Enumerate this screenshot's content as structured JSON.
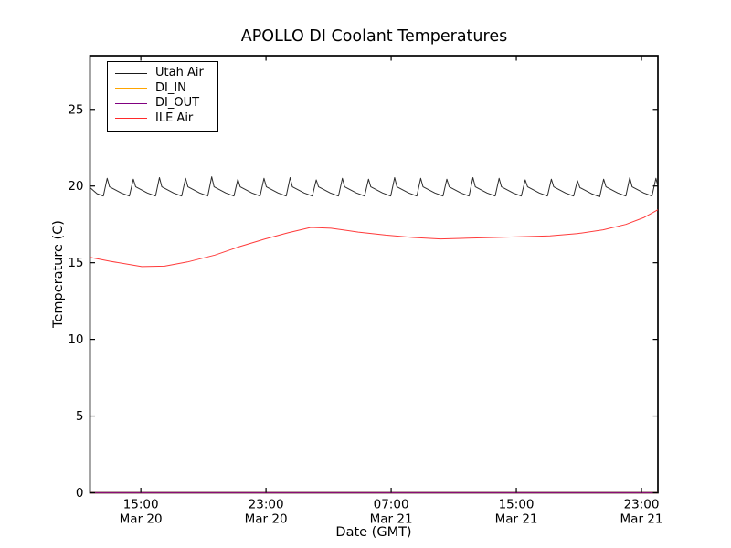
{
  "chart_data": {
    "type": "line",
    "title": "APOLLO DI Coolant Temperatures",
    "xlabel": "Date (GMT)",
    "ylabel": "Temperature (C)",
    "grid": false,
    "legend_position": "upper left",
    "x_unit_hours_since": "Mar 20 ~11:45 GMT",
    "xlim": [
      0,
      36.3
    ],
    "ylim": [
      0,
      28.5
    ],
    "y_ticks": [
      0,
      5,
      10,
      15,
      20,
      25
    ],
    "x_ticks": [
      {
        "t": 3.25,
        "time": "15:00",
        "date": "Mar 20"
      },
      {
        "t": 11.25,
        "time": "23:00",
        "date": "Mar 20"
      },
      {
        "t": 19.25,
        "time": "07:00",
        "date": "Mar 21"
      },
      {
        "t": 27.25,
        "time": "15:00",
        "date": "Mar 21"
      },
      {
        "t": 35.25,
        "time": "23:00",
        "date": "Mar 21"
      }
    ],
    "series": [
      {
        "name": "Utah Air",
        "color": "#1a1a1a",
        "width": 1,
        "points": [
          [
            0,
            19.9
          ],
          [
            0.45,
            19.5
          ],
          [
            0.85,
            19.35
          ],
          [
            1.1,
            20.5
          ],
          [
            1.25,
            19.95
          ],
          [
            2.0,
            19.55
          ],
          [
            2.52,
            19.35
          ],
          [
            2.77,
            20.45
          ],
          [
            2.92,
            19.95
          ],
          [
            3.67,
            19.55
          ],
          [
            4.19,
            19.35
          ],
          [
            4.44,
            20.55
          ],
          [
            4.59,
            19.95
          ],
          [
            5.34,
            19.55
          ],
          [
            5.86,
            19.35
          ],
          [
            6.11,
            20.5
          ],
          [
            6.26,
            19.95
          ],
          [
            7.01,
            19.55
          ],
          [
            7.53,
            19.35
          ],
          [
            7.78,
            20.6
          ],
          [
            7.93,
            19.95
          ],
          [
            8.68,
            19.55
          ],
          [
            9.2,
            19.35
          ],
          [
            9.45,
            20.45
          ],
          [
            9.6,
            19.95
          ],
          [
            10.35,
            19.55
          ],
          [
            10.87,
            19.35
          ],
          [
            11.12,
            20.5
          ],
          [
            11.27,
            19.95
          ],
          [
            12.02,
            19.55
          ],
          [
            12.54,
            19.35
          ],
          [
            12.79,
            20.55
          ],
          [
            12.94,
            19.95
          ],
          [
            13.69,
            19.55
          ],
          [
            14.21,
            19.35
          ],
          [
            14.46,
            20.4
          ],
          [
            14.61,
            19.95
          ],
          [
            15.36,
            19.55
          ],
          [
            15.88,
            19.35
          ],
          [
            16.13,
            20.5
          ],
          [
            16.28,
            19.95
          ],
          [
            17.03,
            19.55
          ],
          [
            17.55,
            19.35
          ],
          [
            17.8,
            20.45
          ],
          [
            17.95,
            19.95
          ],
          [
            18.7,
            19.55
          ],
          [
            19.22,
            19.35
          ],
          [
            19.47,
            20.55
          ],
          [
            19.62,
            19.95
          ],
          [
            20.37,
            19.55
          ],
          [
            20.89,
            19.35
          ],
          [
            21.14,
            20.5
          ],
          [
            21.29,
            19.95
          ],
          [
            22.04,
            19.55
          ],
          [
            22.56,
            19.35
          ],
          [
            22.81,
            20.45
          ],
          [
            22.96,
            19.95
          ],
          [
            23.71,
            19.55
          ],
          [
            24.23,
            19.35
          ],
          [
            24.48,
            20.55
          ],
          [
            24.63,
            19.95
          ],
          [
            25.38,
            19.55
          ],
          [
            25.9,
            19.35
          ],
          [
            26.15,
            20.5
          ],
          [
            26.3,
            19.95
          ],
          [
            27.05,
            19.55
          ],
          [
            27.57,
            19.35
          ],
          [
            27.82,
            20.4
          ],
          [
            27.97,
            19.95
          ],
          [
            28.72,
            19.55
          ],
          [
            29.24,
            19.35
          ],
          [
            29.49,
            20.45
          ],
          [
            29.64,
            19.95
          ],
          [
            30.39,
            19.55
          ],
          [
            30.91,
            19.35
          ],
          [
            31.16,
            20.35
          ],
          [
            31.31,
            19.9
          ],
          [
            32.06,
            19.5
          ],
          [
            32.58,
            19.3
          ],
          [
            32.83,
            20.45
          ],
          [
            32.98,
            19.95
          ],
          [
            33.73,
            19.55
          ],
          [
            34.25,
            19.35
          ],
          [
            34.5,
            20.55
          ],
          [
            34.65,
            19.95
          ],
          [
            35.4,
            19.55
          ],
          [
            35.92,
            19.35
          ],
          [
            36.17,
            20.5
          ],
          [
            36.3,
            20.0
          ]
        ]
      },
      {
        "name": "DI_IN",
        "color": "#ffa500",
        "width": 1.2,
        "points": [
          [
            0,
            0
          ],
          [
            36.3,
            0
          ]
        ]
      },
      {
        "name": "DI_OUT",
        "color": "#800080",
        "width": 1.2,
        "points": [
          [
            0,
            0
          ],
          [
            36.3,
            0
          ]
        ]
      },
      {
        "name": "ILE Air",
        "color": "#ff2a2a",
        "width": 1,
        "points": [
          [
            0,
            15.35
          ],
          [
            1.27,
            15.1
          ],
          [
            3.31,
            14.75
          ],
          [
            4.77,
            14.78
          ],
          [
            6.23,
            15.05
          ],
          [
            7.98,
            15.5
          ],
          [
            9.56,
            16.05
          ],
          [
            11.19,
            16.55
          ],
          [
            12.65,
            16.95
          ],
          [
            14.11,
            17.3
          ],
          [
            15.4,
            17.25
          ],
          [
            17.15,
            17.0
          ],
          [
            18.9,
            16.8
          ],
          [
            20.65,
            16.65
          ],
          [
            22.4,
            16.55
          ],
          [
            24.15,
            16.6
          ],
          [
            25.9,
            16.65
          ],
          [
            27.65,
            16.7
          ],
          [
            29.4,
            16.75
          ],
          [
            31.15,
            16.9
          ],
          [
            32.8,
            17.15
          ],
          [
            34.25,
            17.5
          ],
          [
            35.42,
            17.95
          ],
          [
            36.3,
            18.45
          ]
        ]
      }
    ]
  }
}
